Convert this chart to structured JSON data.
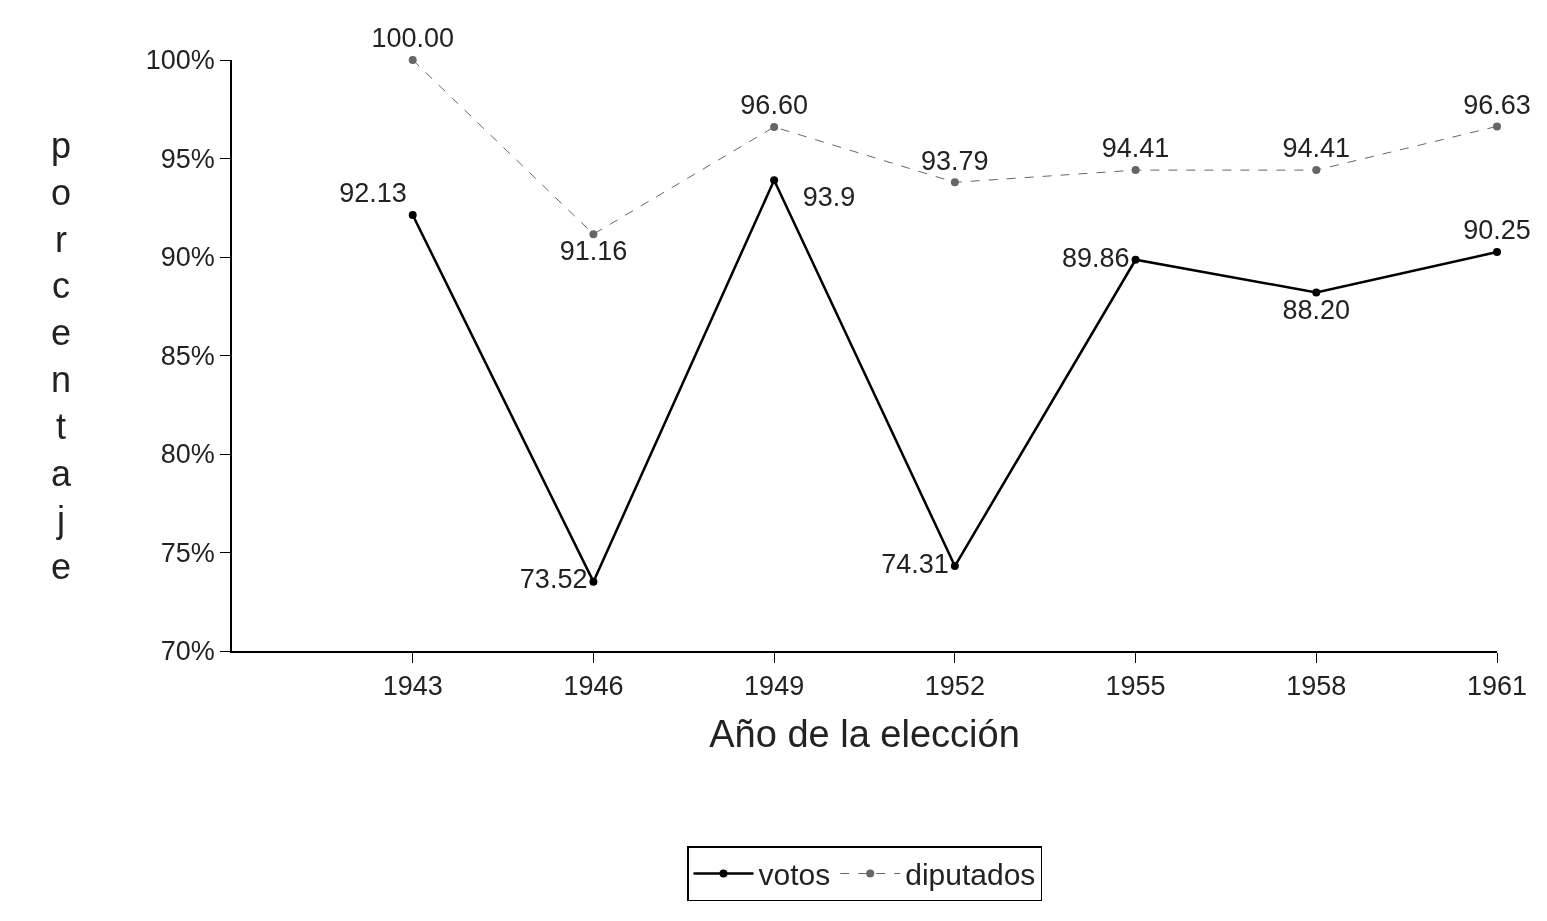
{
  "chart_data": {
    "type": "line",
    "xlabel": "Año de la elección",
    "ylabel": "porcentaje",
    "x": [
      1943,
      1946,
      1949,
      1952,
      1955,
      1958,
      1961
    ],
    "xlim": [
      1940,
      1961
    ],
    "xticks": [
      1943,
      1946,
      1949,
      1952,
      1955,
      1958,
      1961
    ],
    "ylim": [
      70,
      100
    ],
    "yticks": [
      {
        "value": 70,
        "label": "70%"
      },
      {
        "value": 75,
        "label": "75%"
      },
      {
        "value": 80,
        "label": "80%"
      },
      {
        "value": 85,
        "label": "85%"
      },
      {
        "value": 90,
        "label": "90%"
      },
      {
        "value": 95,
        "label": "95%"
      },
      {
        "value": 100,
        "label": "100%"
      }
    ],
    "series": [
      {
        "name": "votos",
        "color": "#000000",
        "line_style": "solid",
        "values": [
          92.13,
          73.52,
          93.9,
          74.31,
          89.86,
          88.2,
          90.25
        ],
        "value_labels": [
          "92.13",
          "73.52",
          "93.9",
          "74.31",
          "89.86",
          "88.20",
          "90.25"
        ]
      },
      {
        "name": "diputados",
        "color": "#666666",
        "line_style": "dashed",
        "values": [
          100.0,
          91.16,
          96.6,
          93.79,
          94.41,
          94.41,
          96.63
        ],
        "value_labels": [
          "100.00",
          "91.16",
          "96.60",
          "93.79",
          "94.41",
          "94.41",
          "96.63"
        ]
      }
    ],
    "marker": "circle",
    "legend": "bottom"
  }
}
